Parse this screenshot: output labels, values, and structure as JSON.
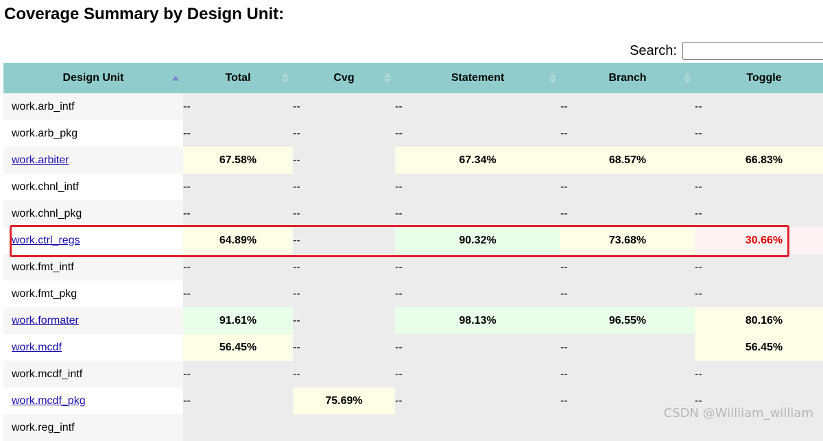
{
  "title": "Coverage Summary by Design Unit:",
  "search": {
    "label": "Search:",
    "value": ""
  },
  "columns": [
    "Design Unit",
    "Total",
    "Cvg",
    "Statement",
    "Branch",
    "Toggle"
  ],
  "rows": [
    {
      "unit": "work.arb_intf",
      "link": false,
      "cells": [
        {
          "text": "--",
          "bg": ""
        },
        {
          "text": "--",
          "bg": ""
        },
        {
          "text": "--",
          "bg": ""
        },
        {
          "text": "--",
          "bg": ""
        },
        {
          "text": "--",
          "bg": ""
        }
      ]
    },
    {
      "unit": "work.arb_pkg",
      "link": false,
      "cells": [
        {
          "text": "--",
          "bg": ""
        },
        {
          "text": "--",
          "bg": ""
        },
        {
          "text": "--",
          "bg": ""
        },
        {
          "text": "--",
          "bg": ""
        },
        {
          "text": "--",
          "bg": ""
        }
      ]
    },
    {
      "unit": "work.arbiter",
      "link": true,
      "cells": [
        {
          "text": "67.58%",
          "bg": "yellow"
        },
        {
          "text": "--",
          "bg": ""
        },
        {
          "text": "67.34%",
          "bg": "yellow"
        },
        {
          "text": "68.57%",
          "bg": "yellow"
        },
        {
          "text": "66.83%",
          "bg": "yellow"
        }
      ]
    },
    {
      "unit": "work.chnl_intf",
      "link": false,
      "cells": [
        {
          "text": "--",
          "bg": ""
        },
        {
          "text": "--",
          "bg": ""
        },
        {
          "text": "--",
          "bg": ""
        },
        {
          "text": "--",
          "bg": ""
        },
        {
          "text": "--",
          "bg": ""
        }
      ]
    },
    {
      "unit": "work.chnl_pkg",
      "link": false,
      "cells": [
        {
          "text": "--",
          "bg": ""
        },
        {
          "text": "--",
          "bg": ""
        },
        {
          "text": "--",
          "bg": ""
        },
        {
          "text": "--",
          "bg": ""
        },
        {
          "text": "--",
          "bg": ""
        }
      ]
    },
    {
      "unit": "work.ctrl_regs",
      "link": true,
      "cells": [
        {
          "text": "64.89%",
          "bg": "yellow"
        },
        {
          "text": "--",
          "bg": ""
        },
        {
          "text": "90.32%",
          "bg": "green"
        },
        {
          "text": "73.68%",
          "bg": "yellow"
        },
        {
          "text": "30.66%",
          "bg": "red"
        }
      ]
    },
    {
      "unit": "work.fmt_intf",
      "link": false,
      "cells": [
        {
          "text": "--",
          "bg": ""
        },
        {
          "text": "--",
          "bg": ""
        },
        {
          "text": "--",
          "bg": ""
        },
        {
          "text": "--",
          "bg": ""
        },
        {
          "text": "--",
          "bg": ""
        }
      ]
    },
    {
      "unit": "work.fmt_pkg",
      "link": false,
      "cells": [
        {
          "text": "--",
          "bg": ""
        },
        {
          "text": "--",
          "bg": ""
        },
        {
          "text": "--",
          "bg": ""
        },
        {
          "text": "--",
          "bg": ""
        },
        {
          "text": "--",
          "bg": ""
        }
      ]
    },
    {
      "unit": "work.formater",
      "link": true,
      "cells": [
        {
          "text": "91.61%",
          "bg": "green"
        },
        {
          "text": "--",
          "bg": ""
        },
        {
          "text": "98.13%",
          "bg": "green"
        },
        {
          "text": "96.55%",
          "bg": "green"
        },
        {
          "text": "80.16%",
          "bg": "yellow"
        }
      ]
    },
    {
      "unit": "work.mcdf",
      "link": true,
      "cells": [
        {
          "text": "56.45%",
          "bg": "yellow"
        },
        {
          "text": "--",
          "bg": ""
        },
        {
          "text": "--",
          "bg": ""
        },
        {
          "text": "--",
          "bg": ""
        },
        {
          "text": "56.45%",
          "bg": "yellow"
        }
      ]
    },
    {
      "unit": "work.mcdf_intf",
      "link": false,
      "cells": [
        {
          "text": "--",
          "bg": ""
        },
        {
          "text": "--",
          "bg": ""
        },
        {
          "text": "--",
          "bg": ""
        },
        {
          "text": "--",
          "bg": ""
        },
        {
          "text": "--",
          "bg": ""
        }
      ]
    },
    {
      "unit": "work.mcdf_pkg",
      "link": true,
      "cells": [
        {
          "text": "--",
          "bg": ""
        },
        {
          "text": "75.69%",
          "bg": "yellow"
        },
        {
          "text": "--",
          "bg": ""
        },
        {
          "text": "--",
          "bg": ""
        },
        {
          "text": "--",
          "bg": ""
        }
      ]
    },
    {
      "unit": "work.reg_intf",
      "link": false,
      "cells": [
        {
          "text": "",
          "bg": ""
        },
        {
          "text": "",
          "bg": ""
        },
        {
          "text": "",
          "bg": ""
        },
        {
          "text": "",
          "bg": ""
        },
        {
          "text": "",
          "bg": ""
        }
      ]
    }
  ],
  "watermark": "CSDN @Williiam_william"
}
